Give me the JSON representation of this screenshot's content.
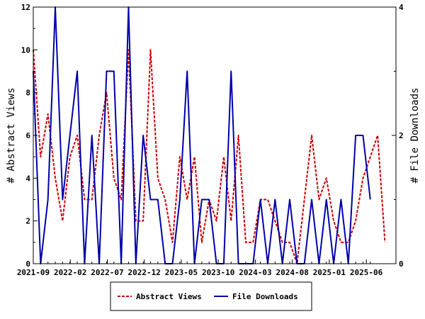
{
  "chart_data": {
    "type": "line",
    "xlabel": "",
    "ylabel": "# Abstract Views",
    "y2label": "# File Downloads",
    "x_ticks": [
      "2021-09",
      "2022-02",
      "2022-07",
      "2022-12",
      "2023-05",
      "2023-10",
      "2024-03",
      "2024-08",
      "2025-01",
      "2025-06"
    ],
    "ylim": [
      0,
      12
    ],
    "y_ticks": [
      "0",
      "2",
      "4",
      "6",
      "8",
      "10",
      "12"
    ],
    "y2lim": [
      0,
      4
    ],
    "y2_ticks": [
      "0",
      "2",
      "4"
    ],
    "grid": false,
    "legend_position": "bottom",
    "series": [
      {
        "name": "Abstract Views",
        "axis": "left",
        "color": "#cc0000",
        "style": "dashed",
        "points": [
          [
            0.0,
            10
          ],
          [
            4.0,
            5
          ],
          [
            8.0,
            7
          ],
          [
            12.0,
            4
          ],
          [
            16.0,
            2
          ],
          [
            20.0,
            5
          ],
          [
            24.0,
            6
          ],
          [
            28.0,
            3
          ],
          [
            32.0,
            3
          ],
          [
            36.0,
            6
          ],
          [
            40.0,
            8
          ],
          [
            44.0,
            4
          ],
          [
            48.0,
            3
          ],
          [
            52.0,
            10
          ],
          [
            56.0,
            2
          ],
          [
            60.0,
            2
          ],
          [
            64.0,
            10
          ],
          [
            68.0,
            4
          ],
          [
            72.0,
            3
          ],
          [
            76.0,
            1
          ],
          [
            80.0,
            5
          ],
          [
            84.0,
            3
          ],
          [
            88.0,
            5
          ],
          [
            92.0,
            1
          ],
          [
            96.0,
            3
          ],
          [
            100.0,
            2
          ],
          [
            104.0,
            5
          ],
          [
            108.0,
            2
          ],
          [
            112.0,
            6
          ],
          [
            116.0,
            1
          ],
          [
            120.0,
            1
          ],
          [
            124.0,
            3
          ],
          [
            128.0,
            3
          ],
          [
            132.0,
            2
          ],
          [
            136.0,
            1
          ],
          [
            140.0,
            1
          ],
          [
            144.0,
            0
          ],
          [
            148.0,
            3
          ],
          [
            152.0,
            6
          ],
          [
            156.0,
            3
          ],
          [
            160.0,
            4
          ],
          [
            164.0,
            2
          ],
          [
            168.0,
            1
          ],
          [
            172.0,
            1
          ],
          [
            176.0,
            2
          ],
          [
            180.0,
            4
          ],
          [
            184.0,
            5
          ],
          [
            188.0,
            6
          ],
          [
            192.0,
            1
          ]
        ]
      },
      {
        "name": "File Downloads",
        "axis": "right",
        "color": "#0000aa",
        "style": "solid",
        "points": [
          [
            0.0,
            3
          ],
          [
            4.0,
            0
          ],
          [
            8.0,
            1
          ],
          [
            12.0,
            4
          ],
          [
            16.0,
            1
          ],
          [
            20.0,
            2
          ],
          [
            24.0,
            3
          ],
          [
            28.0,
            0
          ],
          [
            32.0,
            2
          ],
          [
            36.0,
            0
          ],
          [
            40.0,
            3
          ],
          [
            44.0,
            3
          ],
          [
            48.0,
            0
          ],
          [
            52.0,
            4
          ],
          [
            56.0,
            0
          ],
          [
            60.0,
            2
          ],
          [
            64.0,
            1
          ],
          [
            68.0,
            1
          ],
          [
            72.0,
            0
          ],
          [
            76.0,
            0
          ],
          [
            80.0,
            1
          ],
          [
            84.0,
            3
          ],
          [
            88.0,
            0
          ],
          [
            92.0,
            1
          ],
          [
            96.0,
            1
          ],
          [
            100.0,
            0
          ],
          [
            104.0,
            0
          ],
          [
            108.0,
            3
          ],
          [
            112.0,
            0
          ],
          [
            116.0,
            0
          ],
          [
            120.0,
            0
          ],
          [
            124.0,
            1
          ],
          [
            128.0,
            0
          ],
          [
            132.0,
            1
          ],
          [
            136.0,
            0
          ],
          [
            140.0,
            1
          ],
          [
            144.0,
            0
          ],
          [
            148.0,
            0
          ],
          [
            152.0,
            1
          ],
          [
            156.0,
            0
          ],
          [
            160.0,
            1
          ],
          [
            164.0,
            0
          ],
          [
            168.0,
            1
          ],
          [
            172.0,
            0
          ],
          [
            176.0,
            2
          ],
          [
            180.0,
            2
          ],
          [
            184.0,
            1
          ]
        ]
      }
    ]
  }
}
